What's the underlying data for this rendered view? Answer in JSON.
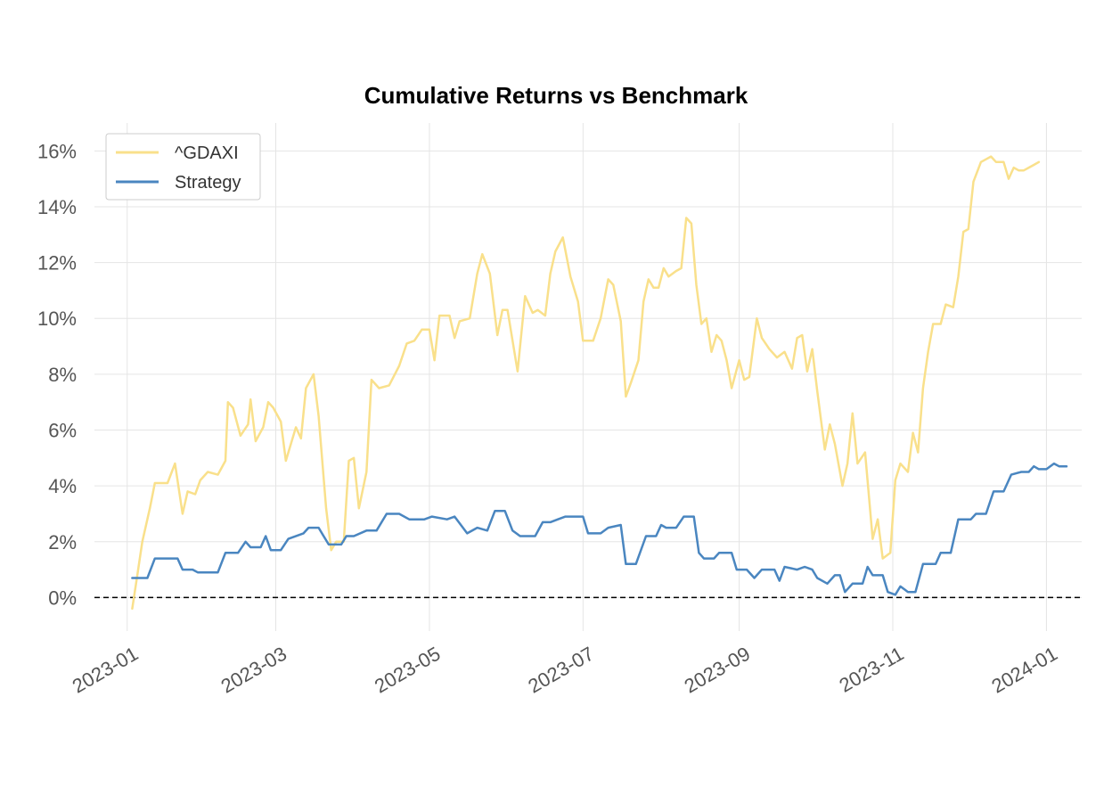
{
  "chart_data": {
    "type": "line",
    "title": "Cumulative Returns vs Benchmark",
    "xlabel": "",
    "ylabel": "",
    "y_format": "percent",
    "ylim": [
      -1.2,
      17.0
    ],
    "xlim": [
      "2022-12-19",
      "2024-01-15"
    ],
    "y_ticks": [
      0,
      2,
      4,
      6,
      8,
      10,
      12,
      14,
      16
    ],
    "y_tick_labels": [
      "0%",
      "2%",
      "4%",
      "6%",
      "8%",
      "10%",
      "12%",
      "14%",
      "16%"
    ],
    "x_ticks": [
      "2023-01-01",
      "2023-03-01",
      "2023-05-01",
      "2023-07-01",
      "2023-09-01",
      "2023-11-01",
      "2024-01-01"
    ],
    "x_tick_labels": [
      "2023-01",
      "2023-03",
      "2023-05",
      "2023-07",
      "2023-09",
      "2023-11",
      "2024-01"
    ],
    "grid": true,
    "legend_position": "top-left",
    "baseline": 0,
    "series": [
      {
        "name": "^GDAXI",
        "color": "#f9e08b",
        "points": [
          [
            "2023-01-03",
            -0.4
          ],
          [
            "2023-01-05",
            0.8
          ],
          [
            "2023-01-07",
            2.0
          ],
          [
            "2023-01-10",
            3.2
          ],
          [
            "2023-01-12",
            4.1
          ],
          [
            "2023-01-17",
            4.1
          ],
          [
            "2023-01-20",
            4.8
          ],
          [
            "2023-01-23",
            3.0
          ],
          [
            "2023-01-25",
            3.8
          ],
          [
            "2023-01-28",
            3.7
          ],
          [
            "2023-01-30",
            4.2
          ],
          [
            "2023-02-02",
            4.5
          ],
          [
            "2023-02-06",
            4.4
          ],
          [
            "2023-02-09",
            4.9
          ],
          [
            "2023-02-10",
            7.0
          ],
          [
            "2023-02-12",
            6.8
          ],
          [
            "2023-02-15",
            5.8
          ],
          [
            "2023-02-18",
            6.2
          ],
          [
            "2023-02-19",
            7.1
          ],
          [
            "2023-02-21",
            5.6
          ],
          [
            "2023-02-24",
            6.1
          ],
          [
            "2023-02-26",
            7.0
          ],
          [
            "2023-02-28",
            6.8
          ],
          [
            "2023-03-03",
            6.3
          ],
          [
            "2023-03-05",
            4.9
          ],
          [
            "2023-03-09",
            6.1
          ],
          [
            "2023-03-11",
            5.7
          ],
          [
            "2023-03-13",
            7.5
          ],
          [
            "2023-03-16",
            8.0
          ],
          [
            "2023-03-18",
            6.5
          ],
          [
            "2023-03-21",
            3.2
          ],
          [
            "2023-03-23",
            1.7
          ],
          [
            "2023-03-25",
            2.0
          ],
          [
            "2023-03-28",
            2.0
          ],
          [
            "2023-03-30",
            4.9
          ],
          [
            "2023-04-01",
            5.0
          ],
          [
            "2023-04-03",
            3.2
          ],
          [
            "2023-04-06",
            4.5
          ],
          [
            "2023-04-08",
            7.8
          ],
          [
            "2023-04-11",
            7.5
          ],
          [
            "2023-04-15",
            7.6
          ],
          [
            "2023-04-19",
            8.3
          ],
          [
            "2023-04-22",
            9.1
          ],
          [
            "2023-04-25",
            9.2
          ],
          [
            "2023-04-28",
            9.6
          ],
          [
            "2023-05-01",
            9.6
          ],
          [
            "2023-05-03",
            8.5
          ],
          [
            "2023-05-05",
            10.1
          ],
          [
            "2023-05-09",
            10.1
          ],
          [
            "2023-05-11",
            9.3
          ],
          [
            "2023-05-13",
            9.9
          ],
          [
            "2023-05-17",
            10.0
          ],
          [
            "2023-05-20",
            11.6
          ],
          [
            "2023-05-22",
            12.3
          ],
          [
            "2023-05-25",
            11.6
          ],
          [
            "2023-05-28",
            9.4
          ],
          [
            "2023-05-30",
            10.3
          ],
          [
            "2023-06-01",
            10.3
          ],
          [
            "2023-06-05",
            8.1
          ],
          [
            "2023-06-08",
            10.8
          ],
          [
            "2023-06-11",
            10.2
          ],
          [
            "2023-06-13",
            10.3
          ],
          [
            "2023-06-16",
            10.1
          ],
          [
            "2023-06-18",
            11.6
          ],
          [
            "2023-06-20",
            12.4
          ],
          [
            "2023-06-23",
            12.9
          ],
          [
            "2023-06-26",
            11.5
          ],
          [
            "2023-06-29",
            10.6
          ],
          [
            "2023-07-01",
            9.2
          ],
          [
            "2023-07-05",
            9.2
          ],
          [
            "2023-07-08",
            10.0
          ],
          [
            "2023-07-11",
            11.4
          ],
          [
            "2023-07-13",
            11.2
          ],
          [
            "2023-07-16",
            9.9
          ],
          [
            "2023-07-18",
            7.2
          ],
          [
            "2023-07-20",
            7.7
          ],
          [
            "2023-07-23",
            8.5
          ],
          [
            "2023-07-25",
            10.6
          ],
          [
            "2023-07-27",
            11.4
          ],
          [
            "2023-07-29",
            11.1
          ],
          [
            "2023-07-31",
            11.1
          ],
          [
            "2023-08-02",
            11.8
          ],
          [
            "2023-08-04",
            11.5
          ],
          [
            "2023-08-07",
            11.7
          ],
          [
            "2023-08-09",
            11.8
          ],
          [
            "2023-08-11",
            13.6
          ],
          [
            "2023-08-13",
            13.4
          ],
          [
            "2023-08-15",
            11.2
          ],
          [
            "2023-08-17",
            9.8
          ],
          [
            "2023-08-19",
            10.0
          ],
          [
            "2023-08-21",
            8.8
          ],
          [
            "2023-08-23",
            9.4
          ],
          [
            "2023-08-25",
            9.2
          ],
          [
            "2023-08-27",
            8.5
          ],
          [
            "2023-08-29",
            7.5
          ],
          [
            "2023-09-01",
            8.5
          ],
          [
            "2023-09-03",
            7.8
          ],
          [
            "2023-09-05",
            7.9
          ],
          [
            "2023-09-08",
            10.0
          ],
          [
            "2023-09-10",
            9.3
          ],
          [
            "2023-09-13",
            8.9
          ],
          [
            "2023-09-16",
            8.6
          ],
          [
            "2023-09-19",
            8.8
          ],
          [
            "2023-09-22",
            8.2
          ],
          [
            "2023-09-24",
            9.3
          ],
          [
            "2023-09-26",
            9.4
          ],
          [
            "2023-09-28",
            8.1
          ],
          [
            "2023-09-30",
            8.9
          ],
          [
            "2023-10-02",
            7.4
          ],
          [
            "2023-10-05",
            5.3
          ],
          [
            "2023-10-07",
            6.2
          ],
          [
            "2023-10-09",
            5.5
          ],
          [
            "2023-10-12",
            4.0
          ],
          [
            "2023-10-14",
            4.8
          ],
          [
            "2023-10-16",
            6.6
          ],
          [
            "2023-10-18",
            4.8
          ],
          [
            "2023-10-21",
            5.2
          ],
          [
            "2023-10-24",
            2.1
          ],
          [
            "2023-10-26",
            2.8
          ],
          [
            "2023-10-28",
            1.4
          ],
          [
            "2023-10-31",
            1.6
          ],
          [
            "2023-11-02",
            4.2
          ],
          [
            "2023-11-04",
            4.8
          ],
          [
            "2023-11-07",
            4.5
          ],
          [
            "2023-11-09",
            5.9
          ],
          [
            "2023-11-11",
            5.2
          ],
          [
            "2023-11-13",
            7.5
          ],
          [
            "2023-11-15",
            8.8
          ],
          [
            "2023-11-17",
            9.8
          ],
          [
            "2023-11-20",
            9.8
          ],
          [
            "2023-11-22",
            10.5
          ],
          [
            "2023-11-25",
            10.4
          ],
          [
            "2023-11-27",
            11.5
          ],
          [
            "2023-11-29",
            13.1
          ],
          [
            "2023-12-01",
            13.2
          ],
          [
            "2023-12-03",
            14.9
          ],
          [
            "2023-12-06",
            15.6
          ],
          [
            "2023-12-08",
            15.7
          ],
          [
            "2023-12-10",
            15.8
          ],
          [
            "2023-12-12",
            15.6
          ],
          [
            "2023-12-15",
            15.6
          ],
          [
            "2023-12-17",
            15.0
          ],
          [
            "2023-12-19",
            15.4
          ],
          [
            "2023-12-21",
            15.3
          ],
          [
            "2023-12-23",
            15.3
          ],
          [
            "2023-12-25",
            15.4
          ],
          [
            "2023-12-27",
            15.5
          ],
          [
            "2023-12-29",
            15.6
          ]
        ]
      },
      {
        "name": "Strategy",
        "color": "#4a86c0",
        "points": [
          [
            "2023-01-03",
            0.7
          ],
          [
            "2023-01-09",
            0.7
          ],
          [
            "2023-01-12",
            1.4
          ],
          [
            "2023-01-17",
            1.4
          ],
          [
            "2023-01-21",
            1.4
          ],
          [
            "2023-01-23",
            1.0
          ],
          [
            "2023-01-27",
            1.0
          ],
          [
            "2023-01-29",
            0.9
          ],
          [
            "2023-02-06",
            0.9
          ],
          [
            "2023-02-09",
            1.6
          ],
          [
            "2023-02-14",
            1.6
          ],
          [
            "2023-02-17",
            2.0
          ],
          [
            "2023-02-19",
            1.8
          ],
          [
            "2023-02-23",
            1.8
          ],
          [
            "2023-02-25",
            2.2
          ],
          [
            "2023-02-27",
            1.7
          ],
          [
            "2023-03-03",
            1.7
          ],
          [
            "2023-03-06",
            2.1
          ],
          [
            "2023-03-12",
            2.3
          ],
          [
            "2023-03-14",
            2.5
          ],
          [
            "2023-03-18",
            2.5
          ],
          [
            "2023-03-20",
            2.2
          ],
          [
            "2023-03-22",
            1.9
          ],
          [
            "2023-03-27",
            1.9
          ],
          [
            "2023-03-29",
            2.2
          ],
          [
            "2023-04-01",
            2.2
          ],
          [
            "2023-04-06",
            2.4
          ],
          [
            "2023-04-10",
            2.4
          ],
          [
            "2023-04-14",
            3.0
          ],
          [
            "2023-04-19",
            3.0
          ],
          [
            "2023-04-23",
            2.8
          ],
          [
            "2023-04-29",
            2.8
          ],
          [
            "2023-05-02",
            2.9
          ],
          [
            "2023-05-08",
            2.8
          ],
          [
            "2023-05-11",
            2.9
          ],
          [
            "2023-05-16",
            2.3
          ],
          [
            "2023-05-20",
            2.5
          ],
          [
            "2023-05-24",
            2.4
          ],
          [
            "2023-05-27",
            3.1
          ],
          [
            "2023-05-31",
            3.1
          ],
          [
            "2023-06-03",
            2.4
          ],
          [
            "2023-06-06",
            2.2
          ],
          [
            "2023-06-12",
            2.2
          ],
          [
            "2023-06-15",
            2.7
          ],
          [
            "2023-06-18",
            2.7
          ],
          [
            "2023-06-21",
            2.8
          ],
          [
            "2023-06-24",
            2.9
          ],
          [
            "2023-06-28",
            2.9
          ],
          [
            "2023-07-01",
            2.9
          ],
          [
            "2023-07-03",
            2.3
          ],
          [
            "2023-07-08",
            2.3
          ],
          [
            "2023-07-11",
            2.5
          ],
          [
            "2023-07-16",
            2.6
          ],
          [
            "2023-07-18",
            1.2
          ],
          [
            "2023-07-22",
            1.2
          ],
          [
            "2023-07-26",
            2.2
          ],
          [
            "2023-07-30",
            2.2
          ],
          [
            "2023-08-01",
            2.6
          ],
          [
            "2023-08-03",
            2.5
          ],
          [
            "2023-08-07",
            2.5
          ],
          [
            "2023-08-10",
            2.9
          ],
          [
            "2023-08-14",
            2.9
          ],
          [
            "2023-08-16",
            1.6
          ],
          [
            "2023-08-18",
            1.4
          ],
          [
            "2023-08-22",
            1.4
          ],
          [
            "2023-08-24",
            1.6
          ],
          [
            "2023-08-29",
            1.6
          ],
          [
            "2023-08-31",
            1.0
          ],
          [
            "2023-09-04",
            1.0
          ],
          [
            "2023-09-07",
            0.7
          ],
          [
            "2023-09-10",
            1.0
          ],
          [
            "2023-09-15",
            1.0
          ],
          [
            "2023-09-17",
            0.6
          ],
          [
            "2023-09-19",
            1.1
          ],
          [
            "2023-09-24",
            1.0
          ],
          [
            "2023-09-27",
            1.1
          ],
          [
            "2023-09-30",
            1.0
          ],
          [
            "2023-10-02",
            0.7
          ],
          [
            "2023-10-06",
            0.5
          ],
          [
            "2023-10-09",
            0.8
          ],
          [
            "2023-10-11",
            0.8
          ],
          [
            "2023-10-13",
            0.2
          ],
          [
            "2023-10-16",
            0.5
          ],
          [
            "2023-10-20",
            0.5
          ],
          [
            "2023-10-22",
            1.1
          ],
          [
            "2023-10-24",
            0.8
          ],
          [
            "2023-10-28",
            0.8
          ],
          [
            "2023-10-30",
            0.2
          ],
          [
            "2023-11-02",
            0.1
          ],
          [
            "2023-11-04",
            0.4
          ],
          [
            "2023-11-07",
            0.2
          ],
          [
            "2023-11-10",
            0.2
          ],
          [
            "2023-11-13",
            1.2
          ],
          [
            "2023-11-18",
            1.2
          ],
          [
            "2023-11-20",
            1.6
          ],
          [
            "2023-11-24",
            1.6
          ],
          [
            "2023-11-27",
            2.8
          ],
          [
            "2023-12-02",
            2.8
          ],
          [
            "2023-12-04",
            3.0
          ],
          [
            "2023-12-08",
            3.0
          ],
          [
            "2023-12-11",
            3.8
          ],
          [
            "2023-12-15",
            3.8
          ],
          [
            "2023-12-18",
            4.4
          ],
          [
            "2023-12-22",
            4.5
          ],
          [
            "2023-12-25",
            4.5
          ],
          [
            "2023-12-27",
            4.7
          ],
          [
            "2023-12-29",
            4.6
          ],
          [
            "2024-01-01",
            4.6
          ],
          [
            "2024-01-04",
            4.8
          ],
          [
            "2024-01-06",
            4.7
          ],
          [
            "2024-01-09",
            4.7
          ]
        ]
      }
    ]
  }
}
